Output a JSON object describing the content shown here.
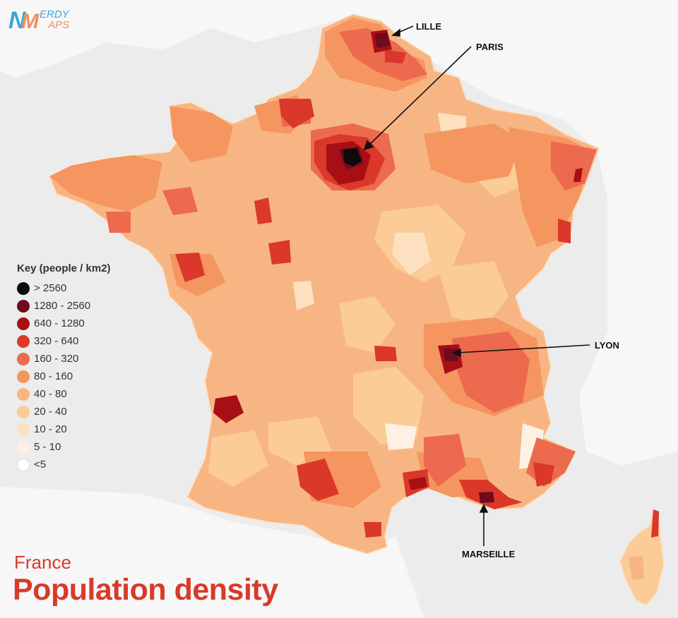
{
  "logo": {
    "text_top": "ERDY",
    "text_bottom": "APS",
    "letter_primary": "N",
    "letter_secondary": "M",
    "colors": {
      "blue": "#3aa7d8",
      "orange": "#f28e5c"
    }
  },
  "map": {
    "subject": "France",
    "cities": [
      {
        "name": "LILLE"
      },
      {
        "name": "PARIS"
      },
      {
        "name": "LYON"
      },
      {
        "name": "MARSEILLE"
      }
    ],
    "colors": {
      "sea": "#ececec",
      "neighbors": "#f6f6f6",
      "base_fill": "#f8b584",
      "regional_fill": "#f08a5c"
    }
  },
  "legend": {
    "title": "Key (people / km2)",
    "items": [
      {
        "label": "> 2560",
        "color": "#0b0b0b"
      },
      {
        "label": "1280 - 2560",
        "color": "#6e0b1e"
      },
      {
        "label": "640 - 1280",
        "color": "#a80f14"
      },
      {
        "label": "320 - 640",
        "color": "#d9382a"
      },
      {
        "label": "160 - 320",
        "color": "#ec6a4e"
      },
      {
        "label": "80 - 160",
        "color": "#f5955f"
      },
      {
        "label": "40 - 80",
        "color": "#f8b584"
      },
      {
        "label": "20 - 40",
        "color": "#fbcb98"
      },
      {
        "label": "10 - 20",
        "color": "#fde0bf"
      },
      {
        "label": "5 - 10",
        "color": "#fef1e3"
      },
      {
        "label": "<5",
        "color": "#ffffff"
      }
    ]
  },
  "titles": {
    "country": "France",
    "main": "Population density"
  }
}
